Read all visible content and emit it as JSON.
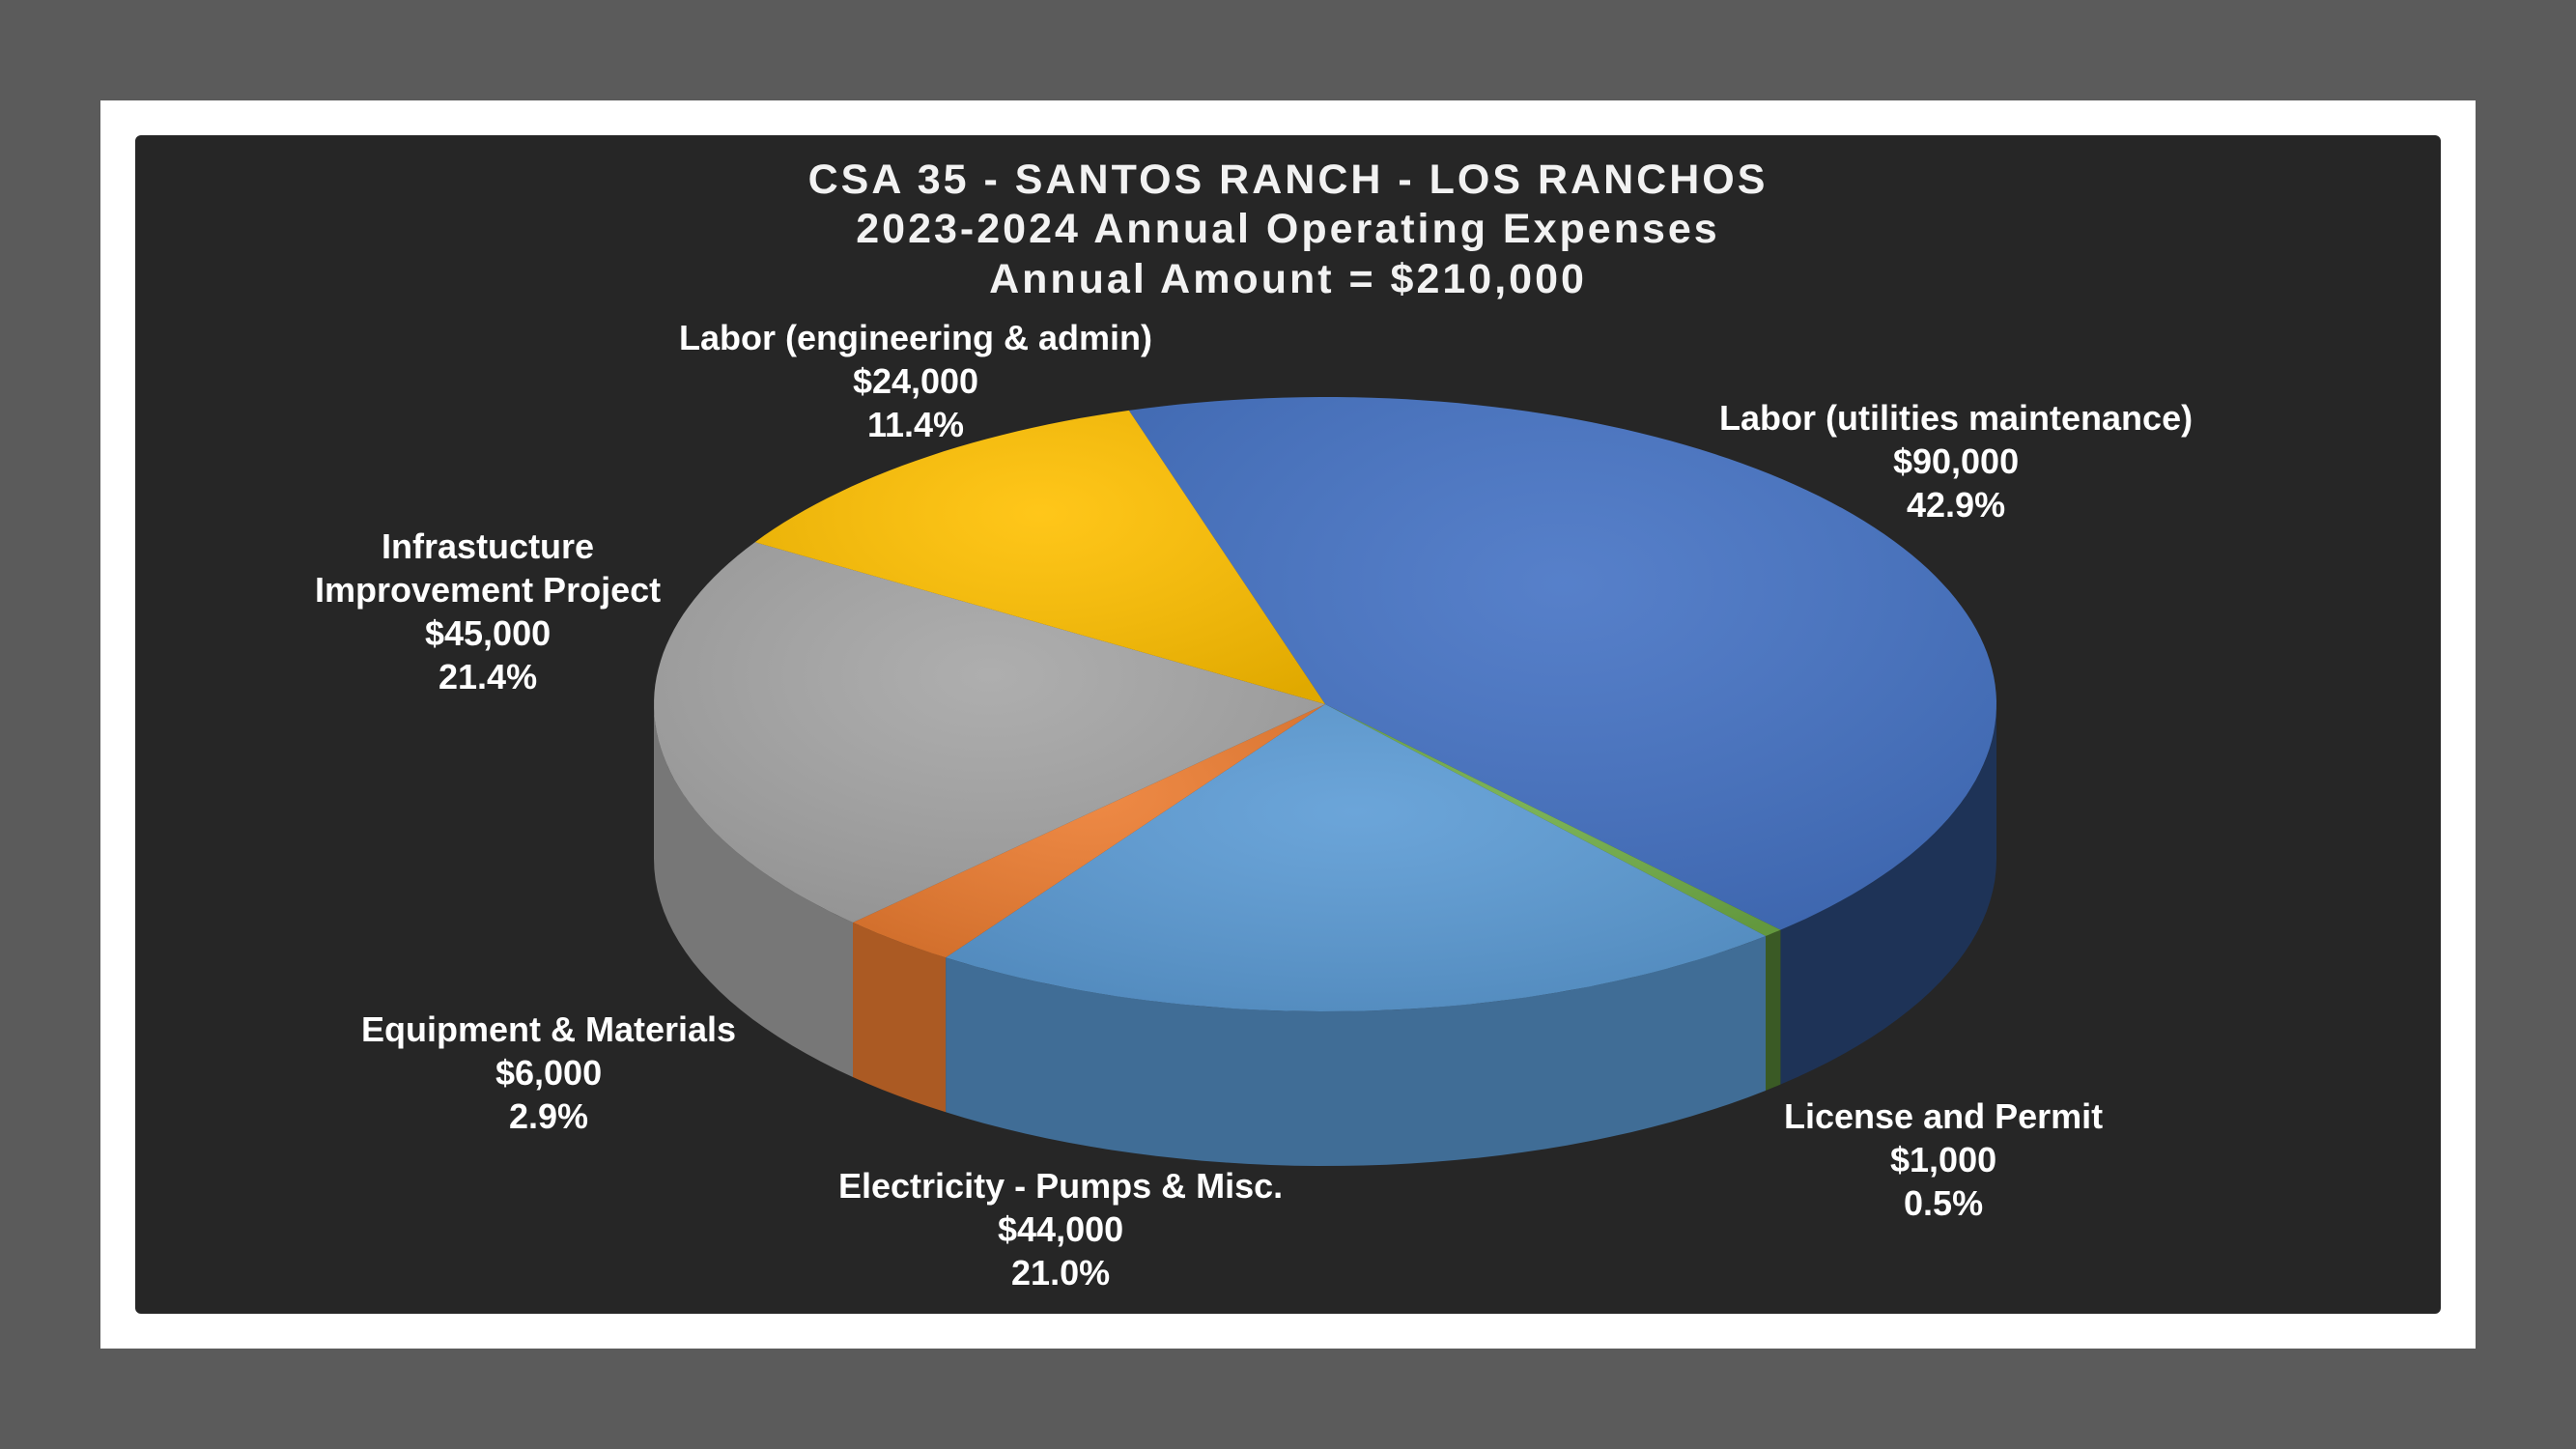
{
  "chart_data": {
    "type": "pie",
    "title_lines": [
      "CSA 35 - SANTOS RANCH - LOS RANCHOS",
      "2023-2024 Annual Operating Expenses",
      "Annual Amount = $210,000"
    ],
    "slices": [
      {
        "name": "Labor (utilities maintenance)",
        "name_lines": [
          "Labor (utilities maintenance)"
        ],
        "value": 90000,
        "value_label": "$90,000",
        "percent_label": "42.9%",
        "color": "#4472c4"
      },
      {
        "name": "License and Permit",
        "name_lines": [
          "License and Permit"
        ],
        "value": 1000,
        "value_label": "$1,000",
        "percent_label": "0.5%",
        "color": "#70ad47"
      },
      {
        "name": "Electricity - Pumps & Misc.",
        "name_lines": [
          "Electricity - Pumps & Misc."
        ],
        "value": 44000,
        "value_label": "$44,000",
        "percent_label": "21.0%",
        "color": "#5b9bd5"
      },
      {
        "name": "Equipment & Materials",
        "name_lines": [
          "Equipment & Materials"
        ],
        "value": 6000,
        "value_label": "$6,000",
        "percent_label": "2.9%",
        "color": "#ed7d31"
      },
      {
        "name": "Infrastucture Improvement Project",
        "name_lines": [
          "Infrastucture",
          "Improvement Project"
        ],
        "value": 45000,
        "value_label": "$45,000",
        "percent_label": "21.4%",
        "color": "#a5a5a5"
      },
      {
        "name": "Labor (engineering & admin)",
        "name_lines": [
          "Labor (engineering & admin)"
        ],
        "value": 24000,
        "value_label": "$24,000",
        "percent_label": "11.4%",
        "color": "#ffc000"
      }
    ]
  }
}
